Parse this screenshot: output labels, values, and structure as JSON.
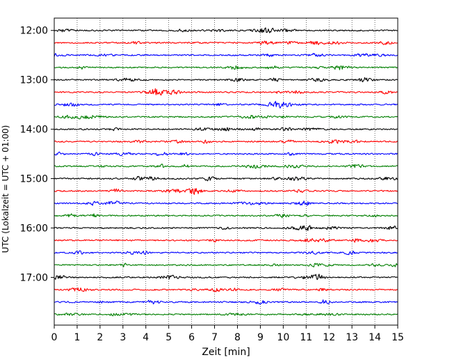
{
  "chart_data": {
    "type": "line",
    "title": "",
    "xlabel": "Zeit  [min]",
    "ylabel": "UTC (Lokalzeit = UTC + 01:00)",
    "xlim": [
      0,
      15
    ],
    "xticks": [
      0,
      1,
      2,
      3,
      4,
      5,
      6,
      7,
      8,
      9,
      10,
      11,
      12,
      13,
      14,
      15
    ],
    "ylim": [
      "11:45",
      "17:58"
    ],
    "yticks": [
      "12:00",
      "13:00",
      "14:00",
      "15:00",
      "16:00",
      "17:00"
    ],
    "grid": "vertical dotted lines at each minute",
    "trace_interval_minutes": 15,
    "trace_colors": [
      "#000000",
      "#ff0000",
      "#0000ff",
      "#007f00"
    ],
    "series": [
      {
        "start": "12:00",
        "color": "#000000"
      },
      {
        "start": "12:15",
        "color": "#ff0000"
      },
      {
        "start": "12:30",
        "color": "#0000ff"
      },
      {
        "start": "12:45",
        "color": "#007f00"
      },
      {
        "start": "13:00",
        "color": "#000000"
      },
      {
        "start": "13:15",
        "color": "#ff0000"
      },
      {
        "start": "13:30",
        "color": "#0000ff"
      },
      {
        "start": "13:45",
        "color": "#007f00"
      },
      {
        "start": "14:00",
        "color": "#000000"
      },
      {
        "start": "14:15",
        "color": "#ff0000"
      },
      {
        "start": "14:30",
        "color": "#0000ff"
      },
      {
        "start": "14:45",
        "color": "#007f00"
      },
      {
        "start": "15:00",
        "color": "#000000"
      },
      {
        "start": "15:15",
        "color": "#ff0000"
      },
      {
        "start": "15:30",
        "color": "#0000ff"
      },
      {
        "start": "15:45",
        "color": "#007f00"
      },
      {
        "start": "16:00",
        "color": "#000000"
      },
      {
        "start": "16:15",
        "color": "#ff0000"
      },
      {
        "start": "16:30",
        "color": "#0000ff"
      },
      {
        "start": "16:45",
        "color": "#007f00"
      },
      {
        "start": "17:00",
        "color": "#000000"
      },
      {
        "start": "17:15",
        "color": "#ff0000"
      },
      {
        "start": "17:30",
        "color": "#0000ff"
      },
      {
        "start": "17:45",
        "color": "#007f00"
      }
    ]
  }
}
